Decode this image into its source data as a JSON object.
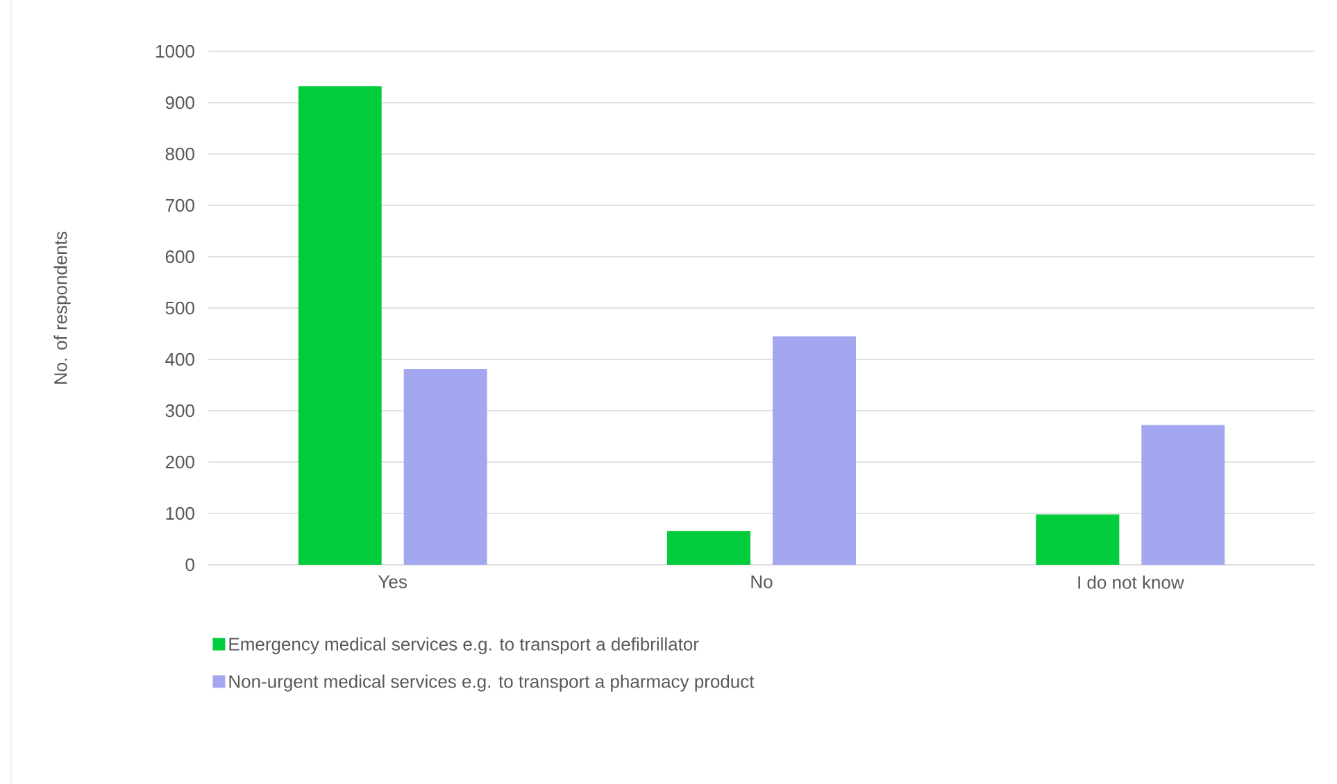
{
  "chart_data": {
    "type": "bar",
    "ylabel": "No. of respondents",
    "categories": [
      "Yes",
      "No",
      "I do not know"
    ],
    "series": [
      {
        "name": "Emergency medical services e.g. to transport a defibrillator",
        "color": "#00cc3c",
        "values": [
          932,
          66,
          98
        ]
      },
      {
        "name": "Non-urgent medical services e.g. to transport a pharmacy product",
        "color": "#a3a7f0",
        "values": [
          381,
          445,
          272
        ]
      }
    ],
    "ylim": [
      0,
      1000
    ],
    "yticks": [
      0,
      100,
      200,
      300,
      400,
      500,
      600,
      700,
      800,
      900,
      1000
    ],
    "grid": "y",
    "legend": "bottom"
  }
}
